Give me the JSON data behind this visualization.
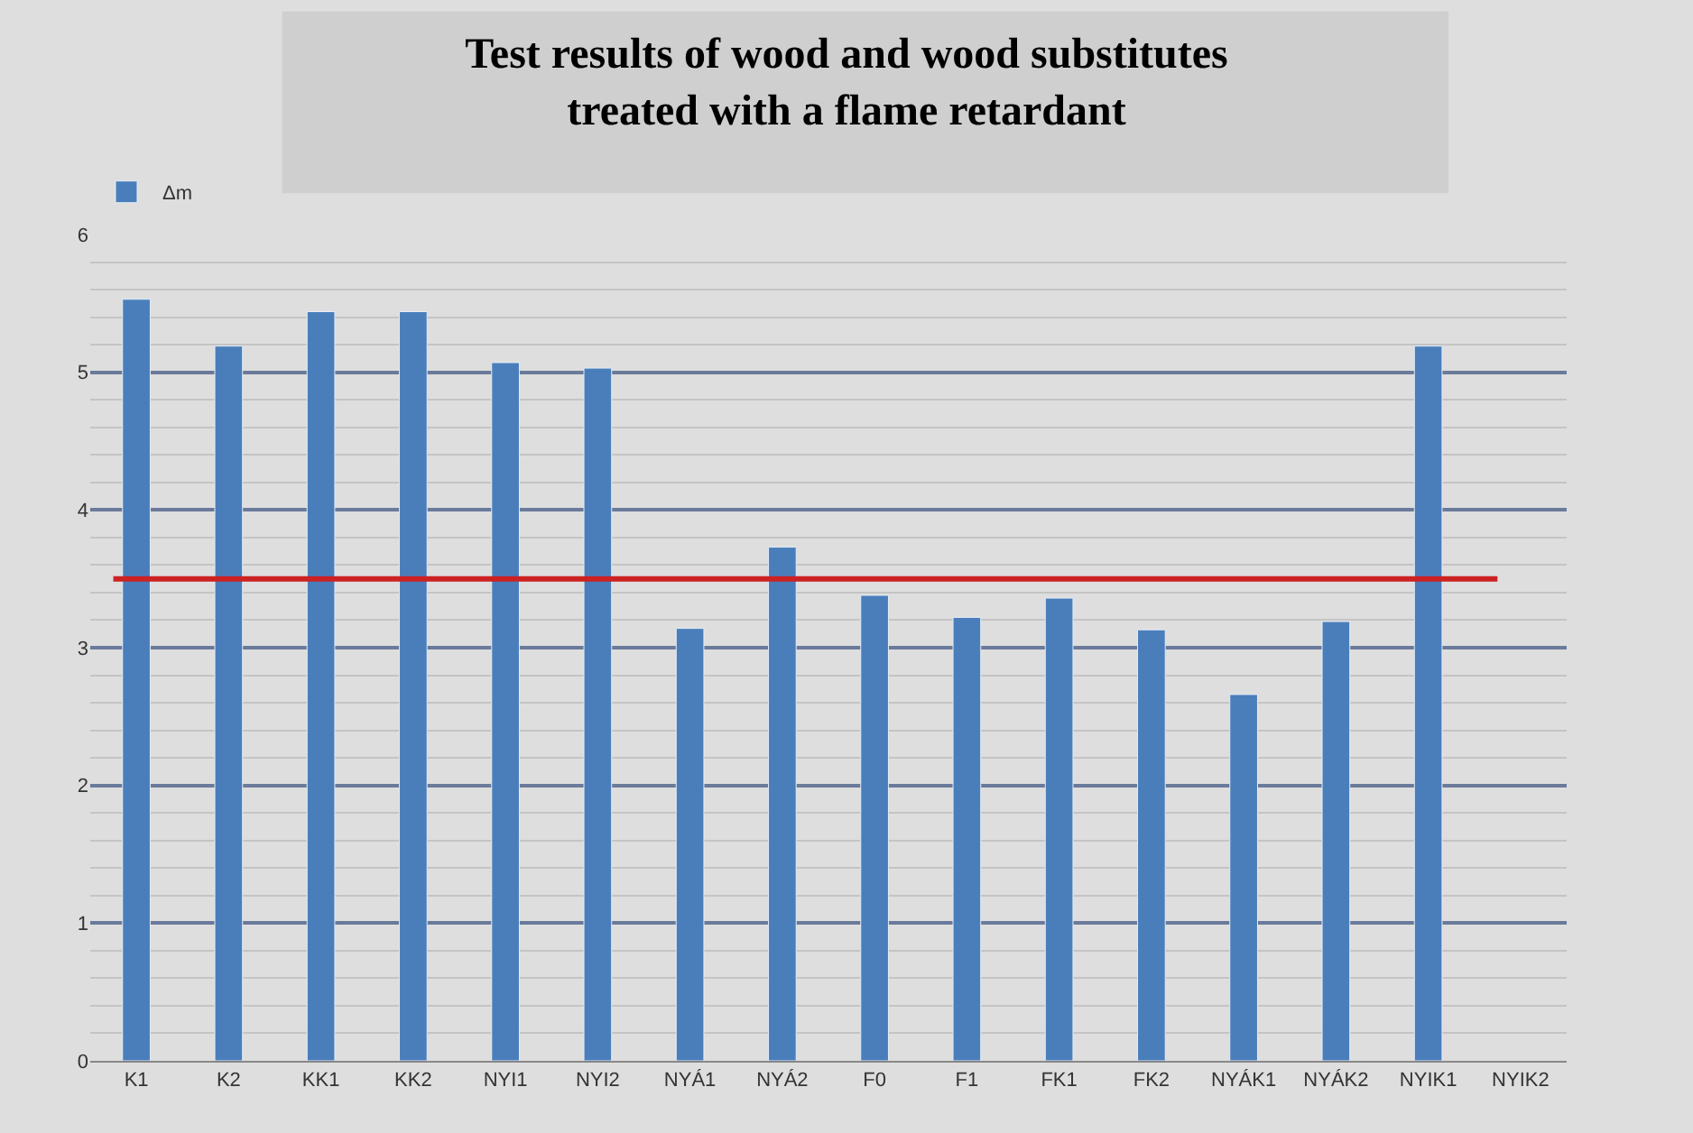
{
  "chart_data": {
    "type": "bar",
    "title": "Test results of wood and wood substitutes\ntreated with a flame retardant",
    "categories": [
      "K1",
      "K2",
      "KK1",
      "KK2",
      "NYI1",
      "NYI2",
      "NYÁ1",
      "NYÁ2",
      "F0",
      "F1",
      "FK1",
      "FK2",
      "NYÁK1",
      "NYÁK2",
      "NYIK1",
      "NYIK2"
    ],
    "series": [
      {
        "name": "Δm",
        "color": "#4a7ebb",
        "values": [
          5.53,
          5.19,
          5.44,
          5.44,
          5.07,
          5.03,
          3.14,
          3.73,
          3.38,
          3.22,
          3.36,
          3.13,
          2.66,
          3.19,
          5.19,
          null
        ]
      }
    ],
    "ylim": [
      0,
      6
    ],
    "yticks": [
      0,
      1,
      2,
      3,
      4,
      5,
      6
    ],
    "grid": "y",
    "legend": "top left",
    "ref_lines": [
      {
        "axis": "y",
        "value": 3.5,
        "color": "#cc2222"
      }
    ]
  }
}
